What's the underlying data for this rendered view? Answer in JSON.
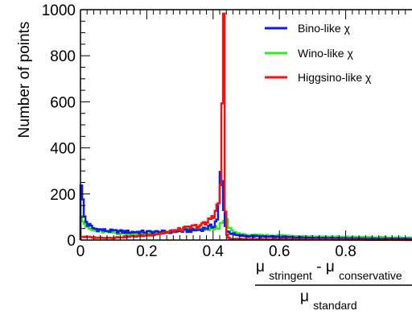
{
  "chart_data": {
    "type": "histogram",
    "ylabel": "Number of points",
    "xlabel": {
      "numerator": {
        "term1_symbol": "μ",
        "term1_sub": "stringent",
        "operator": " - ",
        "term2_symbol": "μ",
        "term2_sub": "conservative"
      },
      "denominator": {
        "symbol": "μ",
        "sub": "standard"
      }
    },
    "xlim": [
      0,
      1
    ],
    "ylim": [
      0,
      1000
    ],
    "xticks": [
      0,
      0.2,
      0.4,
      0.6,
      0.8
    ],
    "xtick_labels": [
      "0",
      "0.2",
      "0.4",
      "0.6",
      "0.8"
    ],
    "yticks": [
      0,
      200,
      400,
      600,
      800,
      1000
    ],
    "ytick_labels": [
      "0",
      "200",
      "400",
      "600",
      "800",
      "1000"
    ],
    "legend": {
      "placement": "top-right",
      "entries": [
        {
          "label": "Bino-like χ",
          "color": "#0a1ee6"
        },
        {
          "label": "Wino-like χ",
          "color": "#28ee1e"
        },
        {
          "label": "Higgsino-like χ",
          "color": "#ee1414"
        }
      ]
    },
    "series": [
      {
        "name": "Bino-like χ",
        "color": "#0a1ee6",
        "points": [
          [
            0,
            320
          ],
          [
            0.01,
            110
          ],
          [
            0.02,
            70
          ],
          [
            0.04,
            50
          ],
          [
            0.08,
            40
          ],
          [
            0.15,
            35
          ],
          [
            0.25,
            35
          ],
          [
            0.32,
            40
          ],
          [
            0.36,
            45
          ],
          [
            0.4,
            60
          ],
          [
            0.415,
            100
          ],
          [
            0.42,
            200
          ],
          [
            0.425,
            340
          ],
          [
            0.43,
            150
          ],
          [
            0.435,
            100
          ],
          [
            0.44,
            40
          ],
          [
            0.47,
            20
          ],
          [
            0.55,
            15
          ],
          [
            0.7,
            10
          ],
          [
            0.85,
            6
          ],
          [
            1.0,
            5
          ]
        ]
      },
      {
        "name": "Wino-like χ",
        "color": "#28ee1e",
        "points": [
          [
            0,
            140
          ],
          [
            0.01,
            80
          ],
          [
            0.02,
            55
          ],
          [
            0.04,
            40
          ],
          [
            0.08,
            35
          ],
          [
            0.15,
            25
          ],
          [
            0.25,
            30
          ],
          [
            0.32,
            45
          ],
          [
            0.36,
            45
          ],
          [
            0.4,
            50
          ],
          [
            0.42,
            60
          ],
          [
            0.43,
            70
          ],
          [
            0.438,
            110
          ],
          [
            0.445,
            60
          ],
          [
            0.46,
            35
          ],
          [
            0.5,
            20
          ],
          [
            0.6,
            20
          ],
          [
            0.7,
            15
          ],
          [
            0.85,
            12
          ],
          [
            1.0,
            10
          ]
        ]
      },
      {
        "name": "Higgsino-like χ",
        "color": "#ee1414",
        "points": [
          [
            0,
            15
          ],
          [
            0.05,
            10
          ],
          [
            0.1,
            10
          ],
          [
            0.2,
            20
          ],
          [
            0.25,
            30
          ],
          [
            0.3,
            45
          ],
          [
            0.35,
            60
          ],
          [
            0.38,
            70
          ],
          [
            0.4,
            110
          ],
          [
            0.42,
            160
          ],
          [
            0.425,
            350
          ],
          [
            0.428,
            620
          ],
          [
            0.432,
            950
          ],
          [
            0.436,
            180
          ],
          [
            0.44,
            30
          ],
          [
            0.45,
            5
          ],
          [
            1.0,
            0
          ]
        ]
      }
    ]
  }
}
